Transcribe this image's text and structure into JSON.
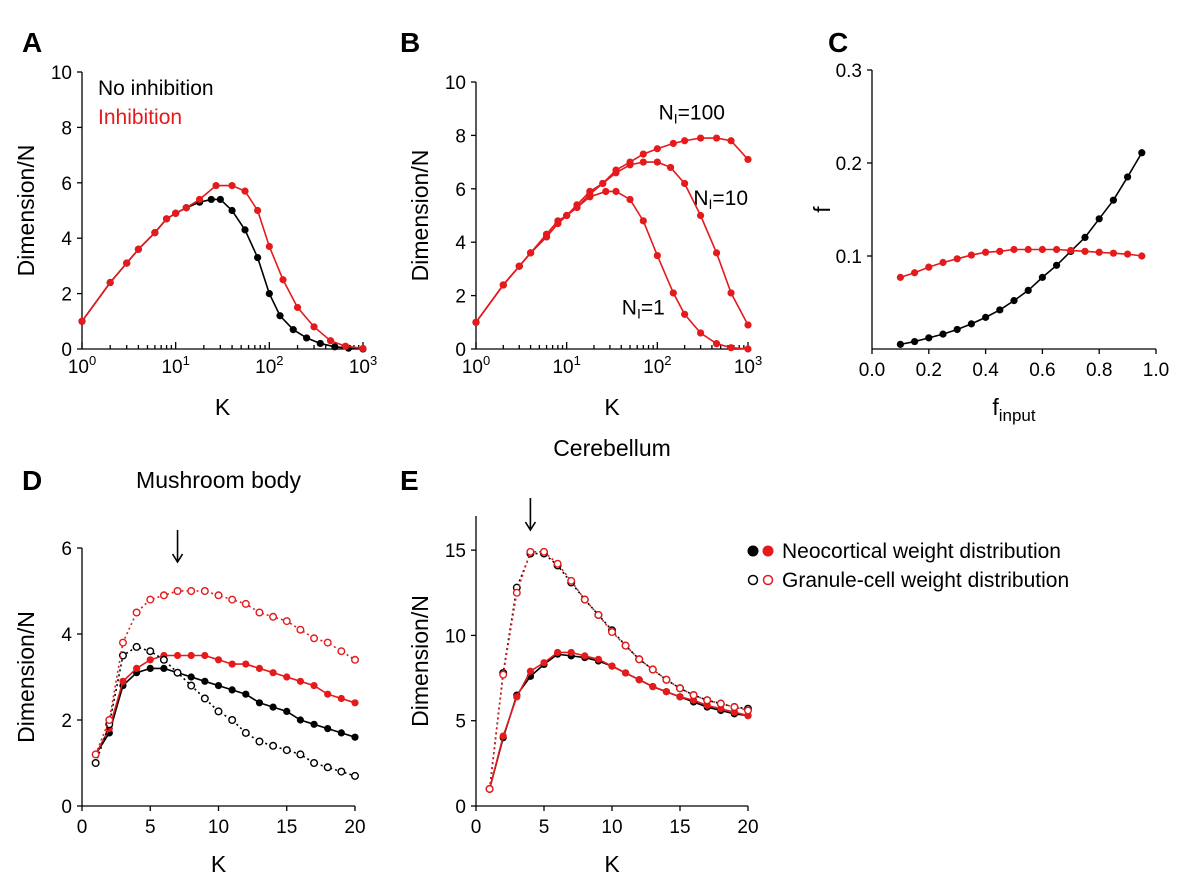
{
  "colors": {
    "black": "#000000",
    "red": "#e41a1c"
  },
  "panels": {
    "A": "A",
    "B": "B",
    "C": "C",
    "D": "D",
    "E": "E"
  },
  "legend_ab": {
    "no_inhibition": "No inhibition",
    "inhibition": "Inhibition"
  },
  "legend_de": {
    "neocortical": "Neocortical weight distribution",
    "granule": "Granule-cell weight distribution"
  },
  "chart_data": [
    {
      "id": "A",
      "type": "line",
      "title": "",
      "xlabel": "K",
      "ylabel": "Dimension/N",
      "xscale": "log",
      "xlim": [
        1,
        1000
      ],
      "ylim": [
        0,
        10
      ],
      "xtick_labels": [
        "10^0",
        "10^1",
        "10^2",
        "10^3"
      ],
      "yticks": [
        0,
        2,
        4,
        6,
        8,
        10
      ],
      "legend_placement": "top-left",
      "series": [
        {
          "name": "No inhibition",
          "color": "black",
          "filled": true,
          "dotted": false,
          "x": [
            1,
            2,
            3,
            4,
            6,
            8,
            10,
            13,
            18,
            24,
            30,
            40,
            55,
            75,
            100,
            130,
            180,
            250,
            350,
            500,
            700,
            1000
          ],
          "y": [
            1.0,
            2.4,
            3.1,
            3.6,
            4.2,
            4.7,
            4.9,
            5.1,
            5.3,
            5.4,
            5.4,
            5.0,
            4.3,
            3.3,
            2.0,
            1.2,
            0.7,
            0.4,
            0.2,
            0.08,
            0.03,
            0.0
          ]
        },
        {
          "name": "Inhibition",
          "color": "red",
          "filled": true,
          "dotted": false,
          "x": [
            1,
            2,
            3,
            4,
            6,
            8,
            10,
            13,
            18,
            27,
            40,
            55,
            75,
            100,
            140,
            200,
            300,
            450,
            650,
            1000
          ],
          "y": [
            1.0,
            2.4,
            3.1,
            3.6,
            4.2,
            4.7,
            4.9,
            5.1,
            5.4,
            5.9,
            5.9,
            5.7,
            5.0,
            3.7,
            2.5,
            1.5,
            0.8,
            0.3,
            0.1,
            0.02
          ]
        }
      ]
    },
    {
      "id": "B",
      "type": "line",
      "title": "",
      "xlabel": "K",
      "ylabel": "Dimension/N",
      "xscale": "log",
      "xlim": [
        1,
        1000
      ],
      "ylim": [
        0,
        10
      ],
      "xtick_labels": [
        "10^0",
        "10^1",
        "10^2",
        "10^3"
      ],
      "yticks": [
        0,
        2,
        4,
        6,
        8,
        10
      ],
      "annotations": [
        {
          "text_main": "N",
          "text_sub": "I",
          "text_rest": "=100",
          "x": 240,
          "y": 8.6
        },
        {
          "text_main": "N",
          "text_sub": "I",
          "text_rest": "=10",
          "x": 500,
          "y": 5.4
        },
        {
          "text_main": "N",
          "text_sub": "I",
          "text_rest": "=1",
          "x": 70,
          "y": 1.3
        }
      ],
      "series": [
        {
          "name": "",
          "color": "red",
          "filled": true,
          "dotted": false,
          "x": [
            1,
            2,
            3,
            4,
            6,
            8,
            10,
            13,
            18,
            25,
            35,
            50,
            70,
            100,
            150,
            200,
            300,
            450,
            650,
            1000
          ],
          "y": [
            1.0,
            2.4,
            3.1,
            3.6,
            4.3,
            4.8,
            5.0,
            5.4,
            5.9,
            6.2,
            6.7,
            7.0,
            7.3,
            7.5,
            7.7,
            7.8,
            7.9,
            7.9,
            7.8,
            7.1
          ]
        },
        {
          "name": "",
          "color": "red",
          "filled": true,
          "dotted": false,
          "x": [
            1,
            2,
            3,
            4,
            6,
            8,
            10,
            13,
            18,
            25,
            35,
            50,
            70,
            100,
            140,
            200,
            300,
            450,
            650,
            1000
          ],
          "y": [
            1.0,
            2.4,
            3.1,
            3.6,
            4.2,
            4.7,
            5.0,
            5.3,
            5.8,
            6.2,
            6.6,
            6.9,
            7.0,
            7.0,
            6.8,
            6.2,
            5.0,
            3.6,
            2.1,
            0.9
          ]
        },
        {
          "name": "",
          "color": "red",
          "filled": true,
          "dotted": false,
          "x": [
            1,
            2,
            3,
            4,
            6,
            8,
            10,
            13,
            18,
            27,
            35,
            50,
            70,
            100,
            150,
            200,
            300,
            450,
            650,
            1000
          ],
          "y": [
            1.0,
            2.4,
            3.1,
            3.6,
            4.2,
            4.7,
            5.0,
            5.3,
            5.7,
            5.9,
            5.9,
            5.6,
            4.8,
            3.5,
            2.1,
            1.3,
            0.6,
            0.2,
            0.05,
            0.0
          ]
        }
      ]
    },
    {
      "id": "C",
      "type": "line",
      "title": "",
      "xlabel_main": "f",
      "xlabel_sub": "input",
      "ylabel": "f",
      "xscale": "linear",
      "xlim": [
        0,
        1
      ],
      "ylim": [
        0,
        0.3
      ],
      "xticks": [
        "0.0",
        "0.2",
        "0.4",
        "0.6",
        "0.8",
        "1.0"
      ],
      "yticks": [
        "0.1",
        "0.2",
        "0.3"
      ],
      "series": [
        {
          "name": "",
          "color": "black",
          "filled": true,
          "dotted": false,
          "x": [
            0.1,
            0.15,
            0.2,
            0.25,
            0.3,
            0.35,
            0.4,
            0.45,
            0.5,
            0.55,
            0.6,
            0.65,
            0.7,
            0.75,
            0.8,
            0.85,
            0.9,
            0.95
          ],
          "y": [
            0.005,
            0.008,
            0.012,
            0.016,
            0.021,
            0.027,
            0.034,
            0.042,
            0.052,
            0.063,
            0.077,
            0.09,
            0.105,
            0.12,
            0.14,
            0.16,
            0.185,
            0.211
          ]
        },
        {
          "name": "",
          "color": "red",
          "filled": true,
          "dotted": false,
          "x": [
            0.1,
            0.15,
            0.2,
            0.25,
            0.3,
            0.35,
            0.4,
            0.45,
            0.5,
            0.55,
            0.6,
            0.65,
            0.7,
            0.75,
            0.8,
            0.85,
            0.9,
            0.95
          ],
          "y": [
            0.077,
            0.082,
            0.088,
            0.093,
            0.097,
            0.101,
            0.104,
            0.105,
            0.107,
            0.107,
            0.107,
            0.107,
            0.106,
            0.105,
            0.104,
            0.103,
            0.102,
            0.1
          ]
        }
      ]
    },
    {
      "id": "D",
      "type": "line",
      "title": "Mushroom body",
      "xlabel": "K",
      "ylabel": "Dimension/N",
      "xscale": "linear",
      "xlim": [
        0,
        20
      ],
      "ylim": [
        0,
        6
      ],
      "xticks": [
        0,
        5,
        10,
        15,
        20
      ],
      "yticks": [
        0,
        2,
        4,
        6
      ],
      "arrow_x": 7,
      "series": [
        {
          "name": "Neocortical weight distribution",
          "color": "black",
          "filled": true,
          "dotted": false,
          "x": [
            1,
            2,
            3,
            4,
            5,
            6,
            7,
            8,
            9,
            10,
            11,
            12,
            13,
            14,
            15,
            16,
            17,
            18,
            19,
            20
          ],
          "y": [
            1.2,
            1.7,
            2.8,
            3.1,
            3.2,
            3.2,
            3.1,
            3.0,
            2.9,
            2.8,
            2.7,
            2.6,
            2.4,
            2.3,
            2.2,
            2.0,
            1.9,
            1.8,
            1.7,
            1.6
          ]
        },
        {
          "name": "Neocortical weight distribution",
          "color": "red",
          "filled": true,
          "dotted": false,
          "x": [
            1,
            2,
            3,
            4,
            5,
            6,
            7,
            8,
            9,
            10,
            11,
            12,
            13,
            14,
            15,
            16,
            17,
            18,
            19,
            20
          ],
          "y": [
            1.2,
            1.8,
            2.9,
            3.2,
            3.4,
            3.5,
            3.5,
            3.5,
            3.5,
            3.4,
            3.3,
            3.3,
            3.2,
            3.1,
            3.0,
            2.9,
            2.8,
            2.6,
            2.5,
            2.4
          ]
        },
        {
          "name": "Granule-cell weight distribution",
          "color": "black",
          "filled": false,
          "dotted": true,
          "x": [
            1,
            2,
            3,
            4,
            5,
            6,
            7,
            8,
            9,
            10,
            11,
            12,
            13,
            14,
            15,
            16,
            17,
            18,
            19,
            20
          ],
          "y": [
            1.0,
            1.9,
            3.5,
            3.7,
            3.6,
            3.4,
            3.1,
            2.8,
            2.5,
            2.2,
            2.0,
            1.7,
            1.5,
            1.4,
            1.3,
            1.2,
            1.0,
            0.9,
            0.8,
            0.7
          ]
        },
        {
          "name": "Granule-cell weight distribution",
          "color": "red",
          "filled": false,
          "dotted": true,
          "x": [
            1,
            2,
            3,
            4,
            5,
            6,
            7,
            8,
            9,
            10,
            11,
            12,
            13,
            14,
            15,
            16,
            17,
            18,
            19,
            20
          ],
          "y": [
            1.2,
            2.0,
            3.8,
            4.5,
            4.8,
            4.9,
            5.0,
            5.0,
            5.0,
            4.9,
            4.8,
            4.7,
            4.5,
            4.4,
            4.3,
            4.1,
            3.9,
            3.8,
            3.6,
            3.4
          ]
        }
      ]
    },
    {
      "id": "E",
      "type": "line",
      "title": "Cerebellum",
      "xlabel": "K",
      "ylabel": "Dimension/N",
      "xscale": "linear",
      "xlim": [
        0,
        20
      ],
      "ylim": [
        0,
        17
      ],
      "xticks": [
        0,
        5,
        10,
        15,
        20
      ],
      "yticks": [
        0,
        5,
        10,
        15
      ],
      "arrow_x": 4,
      "series": [
        {
          "name": "Neocortical weight distribution",
          "color": "black",
          "filled": true,
          "dotted": false,
          "x": [
            1,
            2,
            3,
            4,
            5,
            6,
            7,
            8,
            9,
            10,
            11,
            12,
            13,
            14,
            15,
            16,
            17,
            18,
            19,
            20
          ],
          "y": [
            1.0,
            4.0,
            6.5,
            7.6,
            8.3,
            8.9,
            8.8,
            8.7,
            8.5,
            8.2,
            7.8,
            7.4,
            7.0,
            6.7,
            6.4,
            6.1,
            5.8,
            5.6,
            5.4,
            5.3
          ]
        },
        {
          "name": "Neocortical weight distribution",
          "color": "red",
          "filled": true,
          "dotted": false,
          "x": [
            1,
            2,
            3,
            4,
            5,
            6,
            7,
            8,
            9,
            10,
            11,
            12,
            13,
            14,
            15,
            16,
            17,
            18,
            19,
            20
          ],
          "y": [
            1.0,
            4.1,
            6.4,
            7.9,
            8.4,
            9.0,
            9.0,
            8.8,
            8.6,
            8.2,
            7.8,
            7.4,
            7.0,
            6.7,
            6.4,
            6.2,
            5.9,
            5.7,
            5.5,
            5.3
          ]
        },
        {
          "name": "Granule-cell weight distribution",
          "color": "black",
          "filled": false,
          "dotted": true,
          "x": [
            1,
            2,
            3,
            4,
            5,
            6,
            7,
            8,
            9,
            10,
            11,
            12,
            13,
            14,
            15,
            16,
            17,
            18,
            19,
            20
          ],
          "y": [
            1.0,
            7.8,
            12.8,
            14.8,
            14.8,
            14.1,
            13.1,
            12.1,
            11.2,
            10.3,
            9.4,
            8.6,
            8.0,
            7.4,
            6.9,
            6.5,
            6.2,
            6.0,
            5.8,
            5.7
          ]
        },
        {
          "name": "Granule-cell weight distribution",
          "color": "red",
          "filled": false,
          "dotted": true,
          "x": [
            1,
            2,
            3,
            4,
            5,
            6,
            7,
            8,
            9,
            10,
            11,
            12,
            13,
            14,
            15,
            16,
            17,
            18,
            19,
            20
          ],
          "y": [
            1.0,
            7.7,
            12.5,
            14.9,
            14.9,
            14.2,
            13.2,
            12.1,
            11.2,
            10.2,
            9.4,
            8.6,
            8.0,
            7.4,
            6.9,
            6.5,
            6.2,
            6.0,
            5.8,
            5.6
          ]
        }
      ]
    }
  ]
}
